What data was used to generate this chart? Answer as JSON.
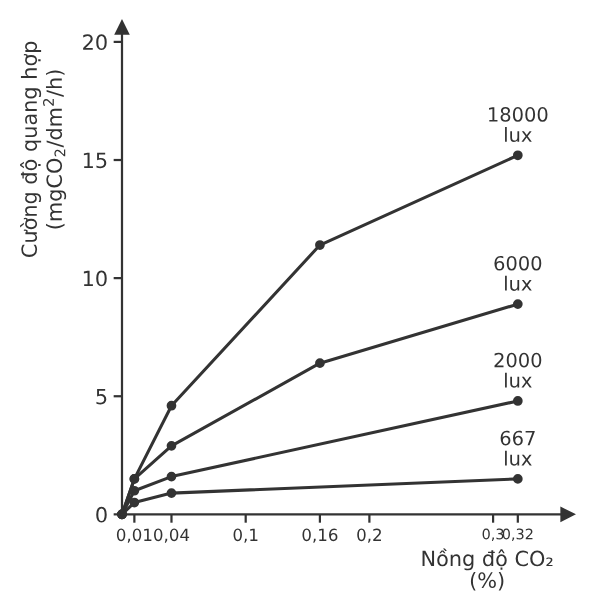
{
  "chart_data": {
    "type": "line",
    "xlabel": "Nồng độ CO₂\n(%)",
    "ylabel": "Cường độ quang hợp\n(mgCO$_{2}$/dm$^{2}$/h)",
    "xlim": [
      0,
      0.36
    ],
    "ylim": [
      0,
      20.6
    ],
    "xticks": [
      {
        "value": 0.01,
        "label": "0,01"
      },
      {
        "value": 0.04,
        "label": "0,04"
      },
      {
        "value": 0.1,
        "label": "0,1"
      },
      {
        "value": 0.16,
        "label": "0,16"
      },
      {
        "value": 0.2,
        "label": "0,2"
      },
      {
        "value": 0.3,
        "label": "0,3"
      },
      {
        "value": 0.32,
        "label": "0,32"
      }
    ],
    "yticks": [
      0,
      5,
      10,
      15,
      20
    ],
    "grid": false,
    "legend": false,
    "marker": "circle",
    "line_style": "solid",
    "series": [
      {
        "name": "18000\nlux",
        "color": "#333333",
        "x": [
          0,
          0.01,
          0.04,
          0.16,
          0.32
        ],
        "values": [
          0,
          1.5,
          4.6,
          11.4,
          15.2
        ]
      },
      {
        "name": "6000\nlux",
        "color": "#333333",
        "x": [
          0,
          0.01,
          0.04,
          0.16,
          0.32
        ],
        "values": [
          0,
          1.5,
          2.9,
          6.4,
          8.9
        ]
      },
      {
        "name": "2000\nlux",
        "color": "#333333",
        "x": [
          0,
          0.01,
          0.04,
          0.32
        ],
        "values": [
          0,
          1.0,
          1.6,
          4.8
        ]
      },
      {
        "name": "667\nlux",
        "color": "#333333",
        "x": [
          0,
          0.01,
          0.04,
          0.32
        ],
        "values": [
          0,
          0.5,
          0.9,
          1.5
        ]
      }
    ]
  }
}
